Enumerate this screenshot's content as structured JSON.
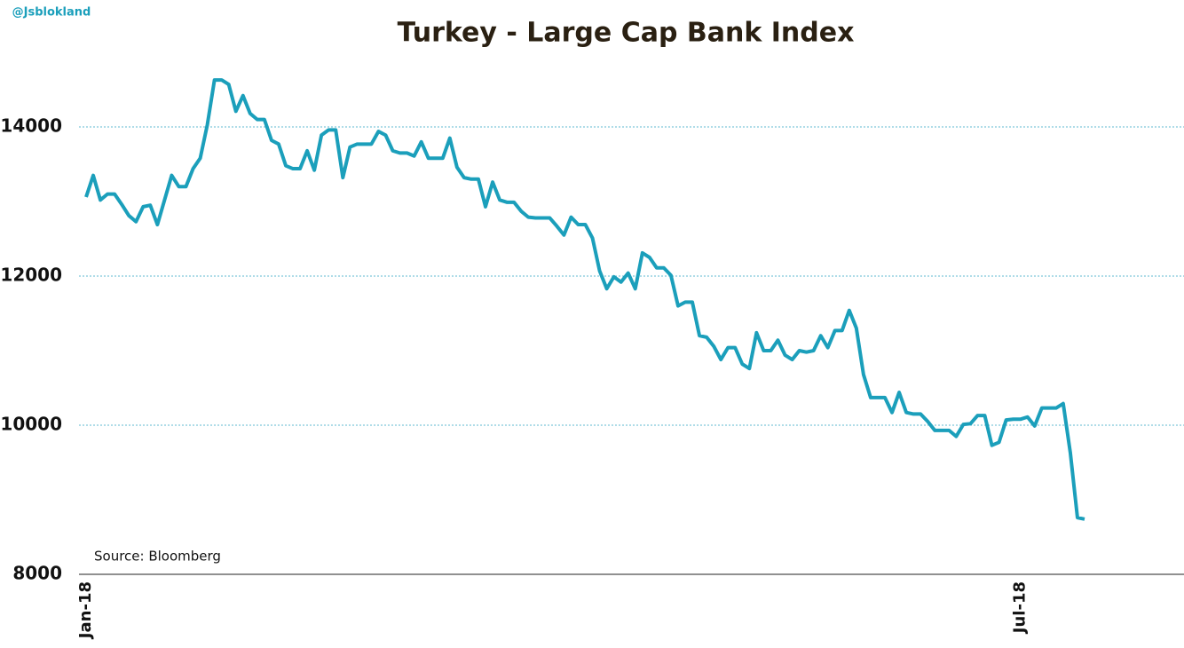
{
  "chart_data": {
    "type": "line",
    "title": "Turkey - Large Cap Bank Index",
    "watermark": "@Jsblokland",
    "annotation": "Source: Bloomberg",
    "color": "#1b9fbb",
    "categories": [
      "Jan-18",
      null,
      null,
      null,
      null,
      null,
      null,
      null,
      null,
      null,
      null,
      null,
      null,
      null,
      null,
      null,
      null,
      null,
      null,
      null,
      null,
      null,
      null,
      null,
      null,
      null,
      null,
      null,
      null,
      null,
      null,
      null,
      null,
      null,
      null,
      null,
      null,
      null,
      null,
      null,
      null,
      null,
      null,
      null,
      null,
      null,
      null,
      null,
      null,
      null,
      null,
      null,
      null,
      null,
      null,
      null,
      null,
      null,
      null,
      null,
      null,
      null,
      null,
      null,
      null,
      null,
      null,
      null,
      null,
      null,
      null,
      null,
      null,
      null,
      null,
      null,
      null,
      null,
      null,
      null,
      null,
      null,
      null,
      null,
      null,
      null,
      null,
      null,
      null,
      null,
      null,
      null,
      null,
      null,
      null,
      null,
      null,
      null,
      null,
      null,
      null,
      null,
      null,
      null,
      null,
      null,
      null,
      null,
      null,
      null,
      null,
      null,
      null,
      null,
      null,
      null,
      null,
      null,
      null,
      null,
      null,
      null,
      null,
      null,
      null,
      null,
      null,
      null,
      null,
      null,
      null,
      "Jul-18",
      null,
      null,
      null,
      null,
      null,
      null,
      null,
      null,
      null
    ],
    "values": [
      13060,
      13350,
      13020,
      13100,
      13100,
      12960,
      12810,
      12730,
      12930,
      12950,
      12690,
      13020,
      13350,
      13200,
      13200,
      13440,
      13580,
      14030,
      14630,
      14630,
      14570,
      14210,
      14420,
      14180,
      14100,
      14100,
      13820,
      13770,
      13480,
      13440,
      13440,
      13680,
      13420,
      13890,
      13960,
      13960,
      13320,
      13730,
      13770,
      13770,
      13770,
      13940,
      13890,
      13680,
      13650,
      13650,
      13610,
      13800,
      13580,
      13580,
      13580,
      13850,
      13460,
      13320,
      13300,
      13300,
      12930,
      13260,
      13020,
      12990,
      12990,
      12870,
      12790,
      12780,
      12780,
      12780,
      12670,
      12550,
      12790,
      12690,
      12690,
      12510,
      12070,
      11830,
      11990,
      11920,
      12040,
      11830,
      12310,
      12250,
      12110,
      12110,
      12010,
      11600,
      11650,
      11650,
      11200,
      11180,
      11060,
      10880,
      11040,
      11040,
      10820,
      10760,
      11240,
      11000,
      11000,
      11140,
      10940,
      10880,
      11000,
      10980,
      11000,
      11200,
      11040,
      11270,
      11270,
      11540,
      11300,
      10680,
      10370,
      10370,
      10370,
      10170,
      10440,
      10170,
      10150,
      10150,
      10050,
      9930,
      9930,
      9930,
      9850,
      10010,
      10020,
      10130,
      10130,
      9730,
      9770,
      10070,
      10080,
      10080,
      10110,
      9990,
      10230,
      10230,
      10230,
      10290,
      9630,
      8760,
      8740
    ],
    "ylim": [
      8000,
      15600
    ],
    "yticks": [
      8000,
      10000,
      12000,
      14000
    ],
    "grid": true
  }
}
